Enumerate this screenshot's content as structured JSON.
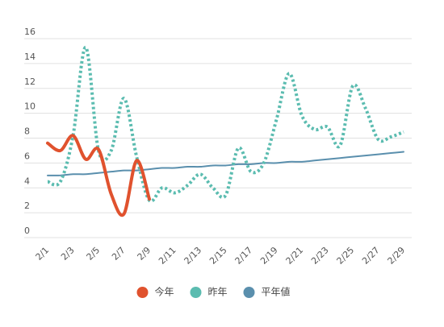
{
  "chart_data": {
    "type": "line",
    "categories": [
      "2/1",
      null,
      "2/3",
      null,
      "2/5",
      null,
      "2/7",
      null,
      "2/9",
      null,
      "2/11",
      null,
      "2/13",
      null,
      "2/15",
      null,
      "2/17",
      null,
      "2/19",
      null,
      "2/21",
      null,
      "2/23",
      null,
      "2/25",
      null,
      "2/27",
      null,
      "2/29"
    ],
    "series": [
      {
        "name": "今年",
        "color": "#e0522e",
        "style": "solid",
        "width": 4,
        "values": [
          7.6,
          7.0,
          8.2,
          6.3,
          7.1,
          3.5,
          1.9,
          6.2,
          3.1,
          null,
          null,
          null,
          null,
          null,
          null,
          null,
          null,
          null,
          null,
          null,
          null,
          null,
          null,
          null,
          null,
          null,
          null,
          null,
          null
        ]
      },
      {
        "name": "昨年",
        "color": "#5bbcb0",
        "style": "dotted",
        "width": 4,
        "values": [
          4.5,
          4.5,
          8.2,
          15.3,
          7.0,
          7.0,
          11.2,
          6.5,
          3.0,
          4.0,
          3.6,
          4.2,
          5.1,
          4.0,
          3.4,
          7.2,
          5.3,
          6.0,
          9.5,
          13.2,
          9.8,
          8.7,
          8.9,
          7.4,
          12.2,
          10.4,
          7.9,
          8.1,
          8.5
        ]
      },
      {
        "name": "平年値",
        "color": "#5a8fad",
        "style": "solid",
        "width": 2,
        "values": [
          5.0,
          5.0,
          5.1,
          5.1,
          5.2,
          5.3,
          5.4,
          5.4,
          5.5,
          5.6,
          5.6,
          5.7,
          5.7,
          5.8,
          5.8,
          5.9,
          5.9,
          6.0,
          6.0,
          6.1,
          6.1,
          6.2,
          6.3,
          6.4,
          6.5,
          6.6,
          6.7,
          6.8,
          6.9
        ]
      }
    ],
    "ylim": [
      0,
      16
    ],
    "yticks": [
      0,
      2,
      4,
      6,
      8,
      10,
      12,
      14,
      16
    ],
    "grid": true,
    "legend": "bottom"
  }
}
